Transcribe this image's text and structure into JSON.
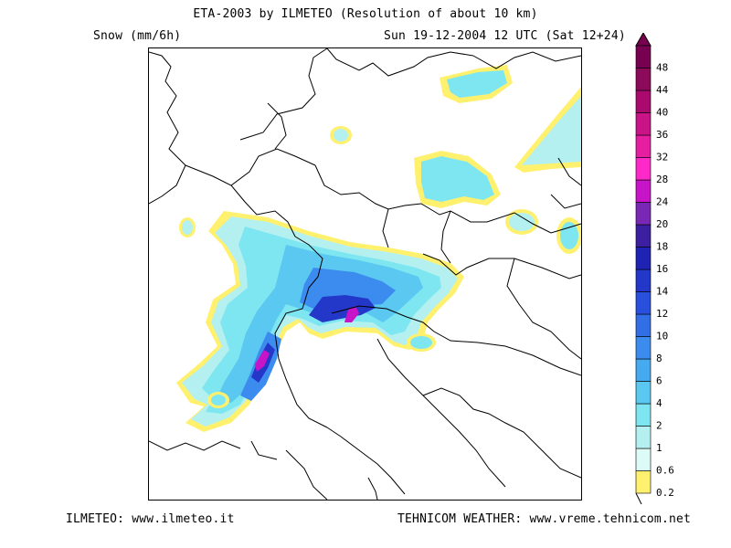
{
  "header": {
    "title": "ETA-2003 by ILMETEO (Resolution of about 10 km)",
    "field": "Snow (mm/6h)",
    "valid": "Sun 19-12-2004 12 UTC (Sat 12+24)"
  },
  "footer": {
    "left": "ILMETEO: www.ilmeteo.it",
    "right": "TEHNICOM WEATHER: www.vreme.tehnicom.net"
  },
  "legend": {
    "levels": [
      {
        "label": "0.2",
        "color": "#fff06e"
      },
      {
        "label": "0.6",
        "color": "#dcfaf6"
      },
      {
        "label": "1",
        "color": "#b4f0f0"
      },
      {
        "label": "2",
        "color": "#7ee6f0"
      },
      {
        "label": "4",
        "color": "#5ac8f0"
      },
      {
        "label": "6",
        "color": "#46aaf0"
      },
      {
        "label": "8",
        "color": "#3c8cf0"
      },
      {
        "label": "10",
        "color": "#326ee6"
      },
      {
        "label": "12",
        "color": "#2850dc"
      },
      {
        "label": "14",
        "color": "#2337c8"
      },
      {
        "label": "16",
        "color": "#1e23b4"
      },
      {
        "label": "18",
        "color": "#3c1ea0"
      },
      {
        "label": "20",
        "color": "#7828b4"
      },
      {
        "label": "24",
        "color": "#c814c8"
      },
      {
        "label": "28",
        "color": "#ff28c8"
      },
      {
        "label": "32",
        "color": "#e61ea0"
      },
      {
        "label": "36",
        "color": "#c81487"
      },
      {
        "label": "40",
        "color": "#aa0a6e"
      },
      {
        "label": "44",
        "color": "#8c0a5a"
      },
      {
        "label": "48",
        "color": "#780050"
      }
    ]
  }
}
